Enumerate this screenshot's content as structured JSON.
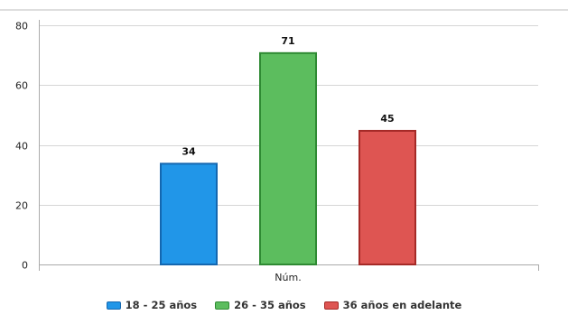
{
  "chart_data": {
    "type": "bar",
    "categories": [
      "Núm."
    ],
    "series": [
      {
        "name": "18 - 25 años",
        "values": [
          34
        ],
        "color": "#2196E8",
        "border": "#1467B0"
      },
      {
        "name": "26 - 35 años",
        "values": [
          71
        ],
        "color": "#5CBD5E",
        "border": "#2F8A33"
      },
      {
        "name": "36 años en adelante",
        "values": [
          45
        ],
        "color": "#DE5552",
        "border": "#A52A27"
      }
    ],
    "yticks": [
      0,
      20,
      40,
      60,
      80
    ],
    "ylim": [
      0,
      80
    ],
    "grid": true,
    "legend_position": "bottom-center",
    "title": "",
    "xlabel": "",
    "ylabel": ""
  }
}
